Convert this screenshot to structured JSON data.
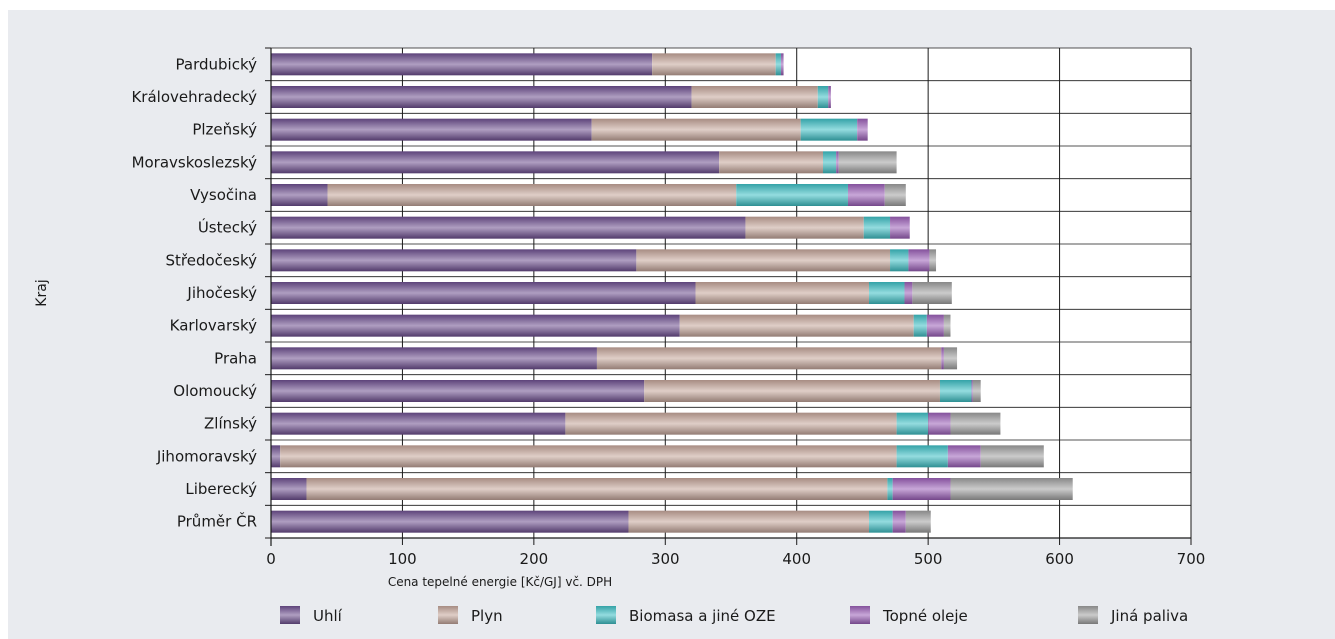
{
  "chart_data": {
    "type": "bar",
    "orientation": "horizontal",
    "stacked": true,
    "title": "",
    "xlabel": "Cena tepelné energie [Kč/GJ] vč. DPH",
    "ylabel": "Kraj",
    "xlim": [
      0,
      700
    ],
    "xticks": [
      0,
      100,
      200,
      300,
      400,
      500,
      600,
      700
    ],
    "grid": "vertical",
    "legend_position": "bottom",
    "categories": [
      "Pardubický",
      "Královehradecký",
      "Plzeňský",
      "Moravskoslezský",
      "Vysočina",
      "Ústecký",
      "Středočeský",
      "Jihočeský",
      "Karlovarský",
      "Praha",
      "Olomoucký",
      "Zlínský",
      "Jihomoravský",
      "Liberecký",
      "Průměr ČR"
    ],
    "series": [
      {
        "name": "Uhlí",
        "color": "#6d4f8f",
        "values": [
          290,
          320,
          244,
          341,
          43,
          361,
          278,
          323,
          311,
          248,
          284,
          224,
          7,
          27,
          272
        ]
      },
      {
        "name": "Plyn",
        "color": "#c4a59a",
        "values": [
          94,
          96,
          159,
          79,
          311,
          90,
          193,
          132,
          178,
          262,
          225,
          252,
          469,
          442,
          183
        ]
      },
      {
        "name": "Biomasa a jiné OZE",
        "color": "#3dbfc4",
        "values": [
          4,
          8,
          43,
          10,
          85,
          20,
          14,
          27,
          10,
          0,
          24,
          24,
          39,
          4,
          18
        ]
      },
      {
        "name": "Topné oleje",
        "color": "#9b5fb8",
        "values": [
          2,
          2,
          8,
          2,
          28,
          15,
          16,
          6,
          13,
          2,
          1,
          17,
          25,
          44,
          10
        ]
      },
      {
        "name": "Jiná paliva",
        "color": "#a0a0a0",
        "values": [
          0,
          0,
          0,
          44,
          16,
          0,
          5,
          30,
          5,
          10,
          6,
          38,
          48,
          93,
          19
        ]
      }
    ]
  }
}
